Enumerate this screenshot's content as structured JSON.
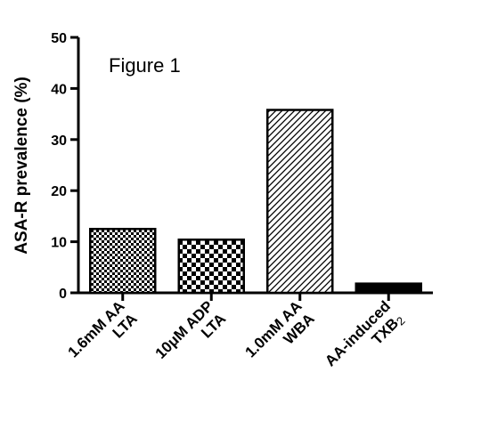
{
  "chart_data": {
    "type": "bar",
    "title": "Figure 1",
    "ylabel": "ASA-R prevalence (%)",
    "xlabel": "",
    "ylim": [
      0,
      50
    ],
    "yticks": [
      0,
      10,
      20,
      30,
      40,
      50
    ],
    "ytick_labels": [
      "0",
      "10",
      "20",
      "30",
      "40",
      "50"
    ],
    "grid": false,
    "legend": "none",
    "categories": [
      {
        "line1": "1.6mM AA",
        "line2": "LTA",
        "line2_sub": ""
      },
      {
        "line1": "10μM ADP",
        "line2": "LTA",
        "line2_sub": ""
      },
      {
        "line1": "1.0mM AA",
        "line2": "WBA",
        "line2_sub": ""
      },
      {
        "line1": "AA-induced",
        "line2": "TXB",
        "line2_sub": "2"
      }
    ],
    "values": [
      12.5,
      10.4,
      35.8,
      1.8
    ],
    "fills": [
      "checker-small",
      "checker-large",
      "diagonal-hatch",
      "solid-black"
    ]
  }
}
